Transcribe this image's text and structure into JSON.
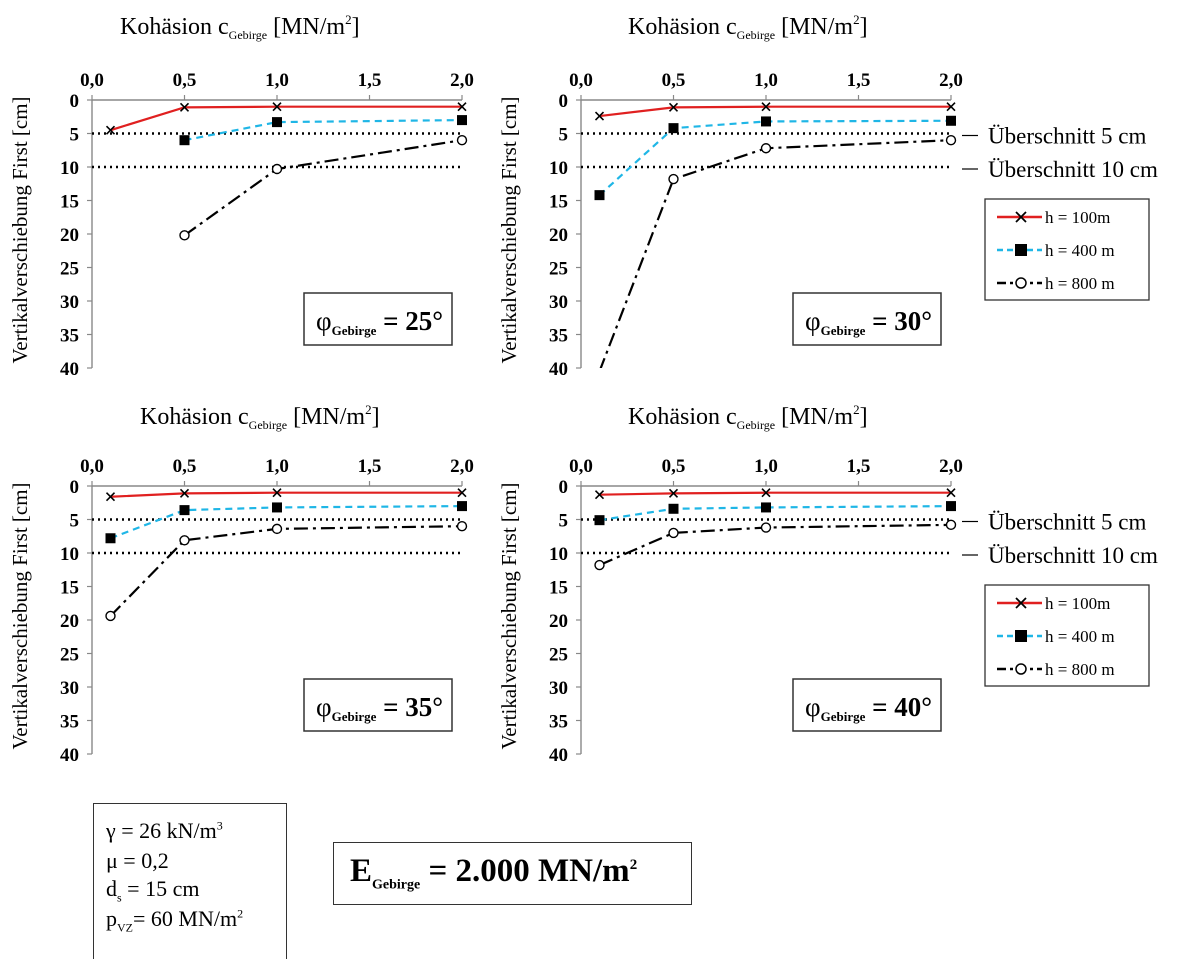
{
  "chart_data": [
    {
      "type": "line",
      "panel_label": {
        "symbol": "φ",
        "subscript": "Gebirge",
        "value": "= 25°"
      },
      "xlabel": {
        "main": "Kohäsion c",
        "subscript": "Gebirge",
        "unit": " [MN/m",
        "sup": "2",
        "close": "]"
      },
      "ylabel": "Vertikalverschiebung First [cm]",
      "xlim": [
        0,
        2
      ],
      "ylim": [
        0,
        40
      ],
      "y_inverted": true,
      "x_axis_position": "top",
      "x_ticks": [
        "0,0",
        "0,5",
        "1,0",
        "1,5",
        "2,0"
      ],
      "y_ticks": [
        "0",
        "5",
        "10",
        "15",
        "20",
        "25",
        "30",
        "35",
        "40"
      ],
      "reference_lines": [
        5,
        10
      ],
      "series": [
        {
          "name": "h = 100m",
          "x": [
            0.1,
            0.5,
            1.0,
            2.0
          ],
          "y": [
            4.5,
            1.1,
            1.0,
            1.0
          ]
        },
        {
          "name": "h = 400 m",
          "x": [
            0.5,
            1.0,
            2.0
          ],
          "y": [
            6.0,
            3.3,
            3.0
          ]
        },
        {
          "name": "h = 800 m",
          "x": [
            0.5,
            1.0,
            2.0
          ],
          "y": [
            20.2,
            10.3,
            6.0
          ]
        }
      ]
    },
    {
      "type": "line",
      "panel_label": {
        "symbol": "φ",
        "subscript": "Gebirge",
        "value": "= 30°"
      },
      "xlabel": {
        "main": "Kohäsion c",
        "subscript": "Gebirge",
        "unit": " [MN/m",
        "sup": "2",
        "close": "]"
      },
      "ylabel": "Vertikalverschiebung First [cm]",
      "xlim": [
        0,
        2
      ],
      "ylim": [
        0,
        40
      ],
      "y_inverted": true,
      "x_axis_position": "top",
      "x_ticks": [
        "0,0",
        "0,5",
        "1,0",
        "1,5",
        "2,0"
      ],
      "y_ticks": [
        "0",
        "5",
        "10",
        "15",
        "20",
        "25",
        "30",
        "35",
        "40"
      ],
      "reference_lines": [
        5,
        10
      ],
      "series": [
        {
          "name": "h = 100m",
          "x": [
            0.1,
            0.5,
            1.0,
            2.0
          ],
          "y": [
            2.4,
            1.1,
            1.0,
            1.0
          ]
        },
        {
          "name": "h = 400 m",
          "x": [
            0.1,
            0.5,
            1.0,
            2.0
          ],
          "y": [
            14.2,
            4.2,
            3.2,
            3.1
          ]
        },
        {
          "name": "h = 800 m",
          "x": [
            0.1,
            0.5,
            1.0,
            2.0
          ],
          "y": [
            40.5,
            11.8,
            7.2,
            6.0
          ],
          "first_point_clipped": true
        }
      ]
    },
    {
      "type": "line",
      "panel_label": {
        "symbol": "φ",
        "subscript": "Gebirge",
        "value": "= 35°"
      },
      "xlabel": {
        "main": "Kohäsion c",
        "subscript": "Gebirge",
        "unit": " [MN/m",
        "sup": "2",
        "close": "]"
      },
      "ylabel": "Vertikalverschiebung First [cm]",
      "xlim": [
        0,
        2
      ],
      "ylim": [
        0,
        40
      ],
      "y_inverted": true,
      "x_axis_position": "top",
      "x_ticks": [
        "0,0",
        "0,5",
        "1,0",
        "1,5",
        "2,0"
      ],
      "y_ticks": [
        "0",
        "5",
        "10",
        "15",
        "20",
        "25",
        "30",
        "35",
        "40"
      ],
      "reference_lines": [
        5,
        10
      ],
      "series": [
        {
          "name": "h = 100m",
          "x": [
            0.1,
            0.5,
            1.0,
            2.0
          ],
          "y": [
            1.6,
            1.1,
            1.0,
            1.0
          ]
        },
        {
          "name": "h = 400 m",
          "x": [
            0.1,
            0.5,
            1.0,
            2.0
          ],
          "y": [
            7.8,
            3.6,
            3.2,
            3.0
          ]
        },
        {
          "name": "h = 800 m",
          "x": [
            0.1,
            0.5,
            1.0,
            2.0
          ],
          "y": [
            19.4,
            8.1,
            6.4,
            6.0
          ]
        }
      ]
    },
    {
      "type": "line",
      "panel_label": {
        "symbol": "φ",
        "subscript": "Gebirge",
        "value": "= 40°"
      },
      "xlabel": {
        "main": "Kohäsion c",
        "subscript": "Gebirge",
        "unit": " [MN/m",
        "sup": "2",
        "close": "]"
      },
      "ylabel": "Vertikalverschiebung First [cm]",
      "xlim": [
        0,
        2
      ],
      "ylim": [
        0,
        40
      ],
      "y_inverted": true,
      "x_axis_position": "top",
      "x_ticks": [
        "0,0",
        "0,5",
        "1,0",
        "1,5",
        "2,0"
      ],
      "y_ticks": [
        "0",
        "5",
        "10",
        "15",
        "20",
        "25",
        "30",
        "35",
        "40"
      ],
      "reference_lines": [
        5,
        10
      ],
      "series": [
        {
          "name": "h = 100m",
          "x": [
            0.1,
            0.5,
            1.0,
            2.0
          ],
          "y": [
            1.3,
            1.1,
            1.0,
            1.0
          ]
        },
        {
          "name": "h = 400 m",
          "x": [
            0.1,
            0.5,
            1.0,
            2.0
          ],
          "y": [
            5.1,
            3.4,
            3.2,
            3.0
          ]
        },
        {
          "name": "h = 800 m",
          "x": [
            0.1,
            0.5,
            1.0,
            2.0
          ],
          "y": [
            11.8,
            7.0,
            6.2,
            5.8
          ]
        }
      ]
    }
  ],
  "reference_labels": [
    "Überschnitt 5 cm",
    "Überschnitt 10 cm"
  ],
  "legend": {
    "placement": "right",
    "entries": [
      {
        "label": "h = 100m",
        "color": "#e02020",
        "dash": "solid",
        "marker": "x"
      },
      {
        "label": "h = 400 m",
        "color": "#1fb6e6",
        "dash": "dashed",
        "marker": "square"
      },
      {
        "label": "h = 800 m",
        "color": "#000000",
        "dash": "dash-dot",
        "marker": "circle"
      }
    ]
  },
  "parameters": {
    "gamma": {
      "label": "γ = 26 kN/m",
      "sup": "3"
    },
    "mu": {
      "label": "μ = 0,2"
    },
    "ds": {
      "pre": "d",
      "sub": "s",
      "post": " = 15 cm"
    },
    "pvz": {
      "pre": "p",
      "sub": "VZ",
      "post": "= 60 MN/m",
      "sup": "2"
    }
  },
  "modulus": {
    "pre": "E",
    "sub": "Gebirge",
    "post": " = 2.000 MN/m",
    "sup": "2"
  }
}
